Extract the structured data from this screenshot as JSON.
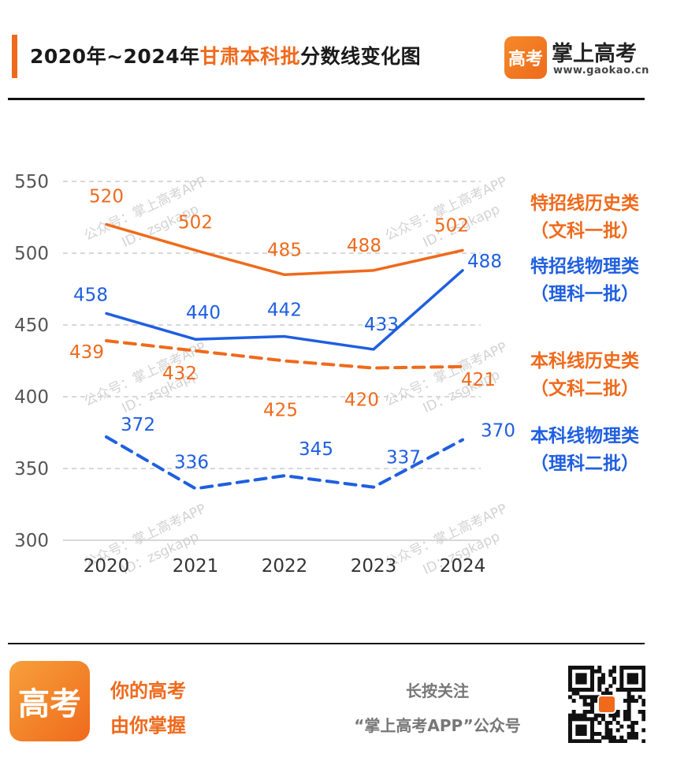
{
  "header": {
    "title_prefix": "2020年~2024年",
    "title_highlight": "甘肃本科批",
    "title_suffix": "分数线变化图",
    "brand_logo_text": "高考",
    "brand_name": "掌上高考",
    "brand_url": "www.gaokao.cn"
  },
  "colors": {
    "orange": "#ef6a1c",
    "blue": "#1f5fe0",
    "grid": "#cccccc",
    "tick_text": "#555555"
  },
  "chart_data": {
    "type": "line",
    "categories": [
      "2020",
      "2021",
      "2022",
      "2023",
      "2024"
    ],
    "ylim": [
      300,
      550
    ],
    "yticks": [
      550,
      500,
      450,
      400,
      350,
      300
    ],
    "grid": "dashed horizontal",
    "series": [
      {
        "name": "特招线历史类（文科一批）",
        "label_lines": [
          "特招线历史类",
          "（文科一批）"
        ],
        "values": [
          520,
          502,
          485,
          488,
          502
        ],
        "color": "#ef6a1c",
        "dash": "solid"
      },
      {
        "name": "特招线物理类（理科一批）",
        "label_lines": [
          "特招线物理类",
          "（理科一批）"
        ],
        "values": [
          458,
          440,
          442,
          433,
          488
        ],
        "color": "#1f5fe0",
        "dash": "solid"
      },
      {
        "name": "本科线历史类（文科二批）",
        "label_lines": [
          "本科线历史类",
          "（文科二批）"
        ],
        "values": [
          439,
          432,
          425,
          420,
          421
        ],
        "color": "#ef6a1c",
        "dash": "dashed"
      },
      {
        "name": "本科线物理类（理科二批）",
        "label_lines": [
          "本科线物理类",
          "（理科二批）"
        ],
        "values": [
          372,
          336,
          345,
          337,
          370
        ],
        "color": "#1f5fe0",
        "dash": "dashed"
      }
    ]
  },
  "watermark": {
    "line1": "公众号：掌上高考APP",
    "line2": "ID：zsgkapp"
  },
  "footer": {
    "logo_text": "高考",
    "slogan_line1": "你的高考",
    "slogan_line2": "由你掌握",
    "follow_line1": "长按关注",
    "follow_line2": "“掌上高考APP”公众号"
  }
}
